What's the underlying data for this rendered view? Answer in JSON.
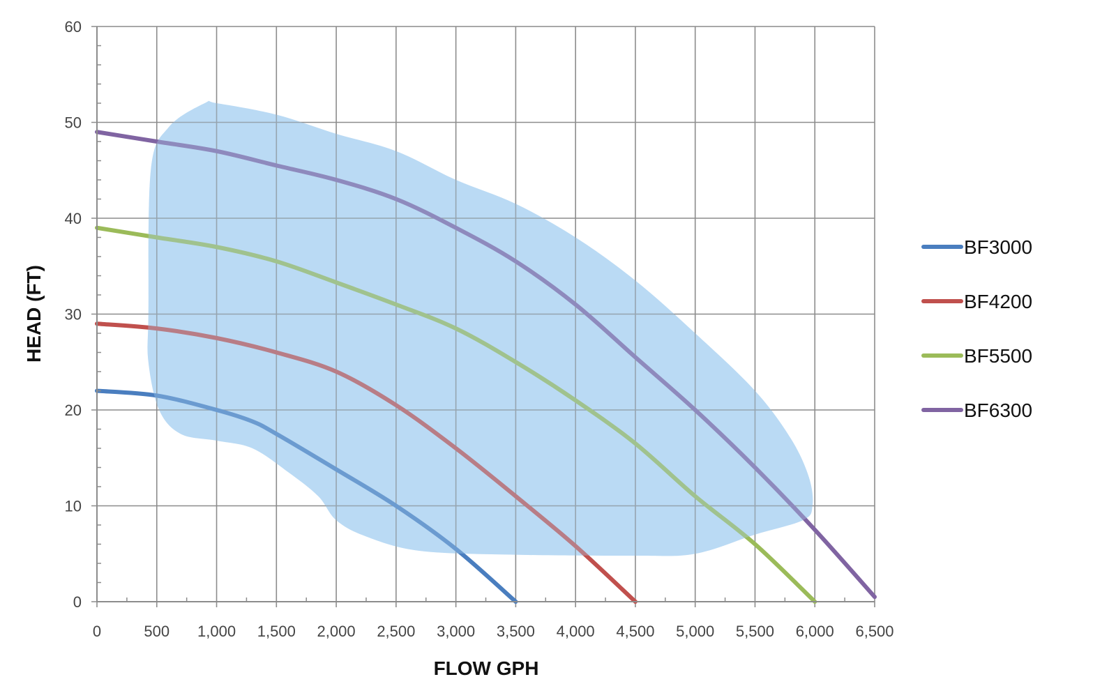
{
  "chart_data": {
    "type": "line",
    "title": "",
    "xlabel": "FLOW GPH",
    "ylabel": "HEAD (FT)",
    "xlim": [
      0,
      6500
    ],
    "ylim": [
      0,
      60
    ],
    "x_major_step": 500,
    "x_minor_step": 250,
    "y_major_step": 10,
    "y_minor_step": 2,
    "grid": true,
    "legend_position": "right",
    "x_tick_labels": [
      "0",
      "500",
      "1,000",
      "1,500",
      "2,000",
      "2,500",
      "3,000",
      "3,500",
      "4,000",
      "4,500",
      "5,000",
      "5,500",
      "6,000",
      "6,500"
    ],
    "y_tick_labels": [
      "0",
      "10",
      "20",
      "30",
      "40",
      "50",
      "60"
    ],
    "series": [
      {
        "name": "BF3000",
        "color": "#4a7ebf",
        "points": [
          [
            0,
            22
          ],
          [
            500,
            21.5
          ],
          [
            1000,
            20
          ],
          [
            1300,
            18.8
          ],
          [
            1500,
            17.5
          ],
          [
            2000,
            13.8
          ],
          [
            2500,
            10
          ],
          [
            3000,
            5.5
          ],
          [
            3500,
            0
          ]
        ]
      },
      {
        "name": "BF4200",
        "color": "#c0504d",
        "points": [
          [
            0,
            29
          ],
          [
            500,
            28.5
          ],
          [
            1000,
            27.5
          ],
          [
            1500,
            26
          ],
          [
            2000,
            24
          ],
          [
            2500,
            20.5
          ],
          [
            3000,
            16
          ],
          [
            3500,
            11
          ],
          [
            4000,
            5.8
          ],
          [
            4500,
            0
          ]
        ]
      },
      {
        "name": "BF5500",
        "color": "#9bbb59",
        "points": [
          [
            0,
            39
          ],
          [
            500,
            38
          ],
          [
            1000,
            37
          ],
          [
            1500,
            35.5
          ],
          [
            2000,
            33.3
          ],
          [
            2500,
            31
          ],
          [
            3000,
            28.5
          ],
          [
            3500,
            25
          ],
          [
            4000,
            21
          ],
          [
            4500,
            16.5
          ],
          [
            5000,
            11
          ],
          [
            5500,
            6
          ],
          [
            6000,
            0
          ]
        ]
      },
      {
        "name": "BF6300",
        "color": "#8064a2",
        "points": [
          [
            0,
            49
          ],
          [
            500,
            48
          ],
          [
            1000,
            47
          ],
          [
            1500,
            45.5
          ],
          [
            2000,
            44
          ],
          [
            2500,
            42
          ],
          [
            3000,
            39
          ],
          [
            3500,
            35.5
          ],
          [
            4000,
            31
          ],
          [
            4500,
            25.5
          ],
          [
            5000,
            20
          ],
          [
            5500,
            14
          ],
          [
            6000,
            7.5
          ],
          [
            6500,
            0.5
          ]
        ]
      }
    ],
    "operating_region": {
      "color": "#a9d2f2",
      "points": [
        [
          430,
          30
        ],
        [
          450,
          45
        ],
        [
          600,
          49.5
        ],
        [
          900,
          52
        ],
        [
          1000,
          52
        ],
        [
          1500,
          50.8
        ],
        [
          2000,
          48.8
        ],
        [
          2500,
          47
        ],
        [
          3000,
          44
        ],
        [
          3500,
          41.5
        ],
        [
          4000,
          38
        ],
        [
          4500,
          33.5
        ],
        [
          5000,
          28
        ],
        [
          5500,
          22
        ],
        [
          5800,
          17
        ],
        [
          5950,
          13
        ],
        [
          5980,
          10
        ],
        [
          5900,
          8.5
        ],
        [
          5500,
          7
        ],
        [
          5000,
          5
        ],
        [
          4500,
          4.8
        ],
        [
          3500,
          4.9
        ],
        [
          2700,
          5.3
        ],
        [
          2250,
          6.8
        ],
        [
          2000,
          8.5
        ],
        [
          1850,
          11
        ],
        [
          1600,
          13.5
        ],
        [
          1300,
          16
        ],
        [
          1000,
          16.8
        ],
        [
          700,
          17.5
        ],
        [
          520,
          20
        ],
        [
          430,
          25
        ]
      ]
    }
  }
}
